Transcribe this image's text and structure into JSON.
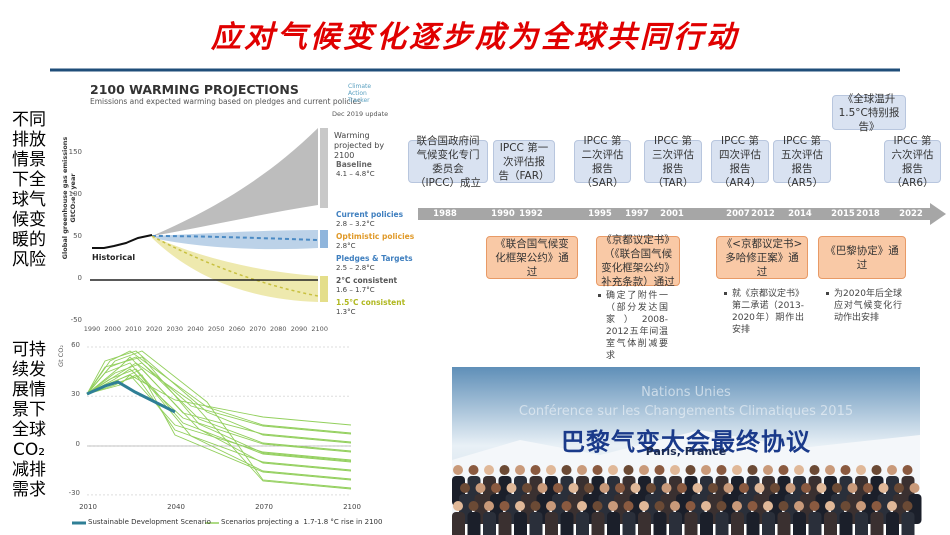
{
  "title": "应对气候变化逐步成为全球共同行动",
  "side_labels": [
    {
      "lines": [
        "不同",
        "排放",
        "情景",
        "下全",
        "球气",
        "候变",
        "暖的",
        "风险"
      ]
    },
    {
      "lines": [
        "可持",
        "续发",
        "展情",
        "景下",
        "全球",
        "CO₂",
        "减排",
        "需求"
      ]
    }
  ],
  "warming_chart": {
    "title": "2100 WARMING PROJECTIONS",
    "subtitle": "Emissions and expected warming based on pledges and current policies",
    "logo": "Climate Action Tracker",
    "date": "Dec 2019 update",
    "y_label": "Global greenhouse gas emissions GtCO₂e / year",
    "yticks": [
      150,
      100,
      50,
      0,
      -50
    ],
    "xticks": [
      1990,
      2000,
      2010,
      2020,
      2030,
      2040,
      2050,
      2060,
      2070,
      2080,
      2090,
      2100
    ],
    "historical": "Historical",
    "legend_title": "Warming projected by 2100",
    "scenarios": [
      {
        "name": "Baseline",
        "range": "4.1 – 4.8°C"
      },
      {
        "name": "Current policies",
        "range": "2.8 – 3.2°C"
      },
      {
        "name": "Optimistic policies",
        "range": "2.8°C"
      },
      {
        "name": "Pledges & Targets",
        "range": "2.5 – 2.8°C"
      },
      {
        "name": "2°C consistent",
        "range": "1.6 – 1.7°C"
      },
      {
        "name": "1.5°C consistent",
        "range": "1.3°C"
      }
    ]
  },
  "co2_chart": {
    "y_label": "Gt CO₂",
    "yticks": [
      60,
      30,
      0,
      -30
    ],
    "xticks": [
      2010,
      2040,
      2070,
      2100
    ],
    "legend": [
      "Sustainable Development Scenario",
      "Scenarios projecting a  1.7-1.8 °C rise in 2100"
    ]
  },
  "timeline": {
    "years": [
      1988,
      1990,
      1992,
      1995,
      1997,
      2001,
      2007,
      2012,
      2014,
      2015,
      2018,
      2022
    ],
    "reports": [
      "联合国政府间气候变化专门委员会（IPCC）成立",
      "IPCC 第一次评估报告（FAR）",
      "IPCC 第二次评估报告（SAR）",
      "IPCC 第三次评估报告（TAR）",
      "IPCC 第四次评估报告（AR4）",
      "IPCC 第五次评估报告（AR5）",
      "《全球温升1.5°C特别报告》",
      "IPCC 第六次评估报告（AR6）"
    ],
    "agreements": [
      "《联合国气候变化框架公约》通过",
      "《京都议定书》（《联合国气候变化框架公约》补充条款）通过",
      "《<京都议定书>多哈修正案》通过",
      "《巴黎协定》通过"
    ],
    "notes": [
      "确定了附件一（部分发达国家）2008-2012五年间温室气体削减要求",
      "就《京都议定书》第二承诺（2013-2020年）期作出安排",
      "为2020年后全球应对气候变化行动作出安排"
    ]
  },
  "photo": {
    "line1": "Nations Unies",
    "line2": "Conférence sur les Changements Climatiques 2015",
    "headline": "巴黎气变大会最终协议",
    "place": "Paris, France"
  }
}
